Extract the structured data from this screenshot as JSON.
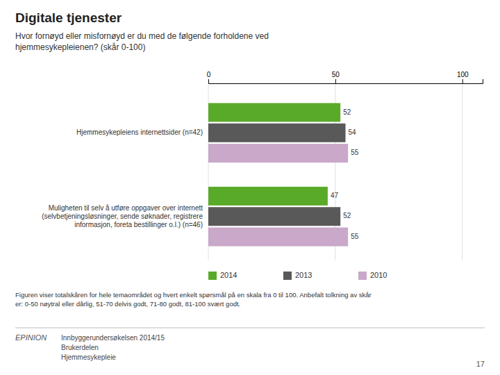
{
  "chart_data": {
    "type": "bar",
    "orientation": "horizontal",
    "title": "Digitale tjenester",
    "subtitle": "Hvor fornøyd eller misfornøyd er du med de følgende forholdene ved\nhjemmesykepleienen? (skår 0-100)",
    "categories": [
      "Hjemmesykepleiens internettsider (n=42)",
      "Muligheten til selv å utføre oppgaver over internett\n(selvbetjeningsløsninger, sende søknader, registrere\ninformasjon, foreta bestillinger o.l.) (n=46)"
    ],
    "series": [
      {
        "name": "2014",
        "color": "#5aaa2a",
        "values": [
          52,
          47
        ]
      },
      {
        "name": "2013",
        "color": "#595959",
        "values": [
          54,
          52
        ]
      },
      {
        "name": "2010",
        "color": "#c9a8c9",
        "values": [
          55,
          55
        ]
      }
    ],
    "xlim": [
      0,
      108
    ],
    "xticks": [
      0,
      50,
      100
    ],
    "grid": true,
    "legend": "bottom",
    "data_labels": true,
    "annotations": [
      "Figuren viser totalskåren for hele temaområdet og hvert enkelt spørsmål på en skala fra 0 til 100. Anbefalt tolkning av skår\ner: 0-50 nøytral eller dårlig, 51-70 delvis godt, 71-80 godt, 81-100 svært godt.",
      "EPINION",
      "Innbyggerundersøkelsen 2014/15\nBrukerdelen\nHjemmesykepleie",
      "17"
    ]
  }
}
